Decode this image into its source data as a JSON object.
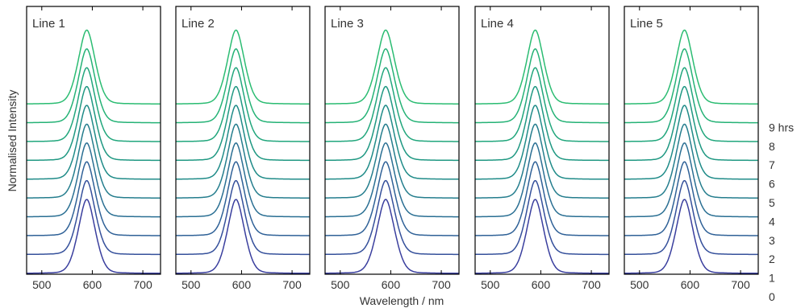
{
  "chart_data": [
    {
      "type": "line",
      "title": "Line 1",
      "x_range": [
        470,
        735
      ],
      "xticks": [
        500,
        600,
        700
      ],
      "peak_center_nm": 589,
      "peak_fwhm_nm": 42,
      "offset_step": 1,
      "series": [
        {
          "name": "0",
          "color": "#3a3f9e"
        },
        {
          "name": "1",
          "color": "#35509b"
        },
        {
          "name": "2",
          "color": "#2f6197"
        },
        {
          "name": "3",
          "color": "#2a6f93"
        },
        {
          "name": "4",
          "color": "#247d8d"
        },
        {
          "name": "5",
          "color": "#1f8b88"
        },
        {
          "name": "6",
          "color": "#1f9882"
        },
        {
          "name": "7",
          "color": "#21a67c"
        },
        {
          "name": "8",
          "color": "#25b276"
        },
        {
          "name": "9 hrs",
          "color": "#2bbc72"
        }
      ]
    },
    {
      "type": "line",
      "title": "Line 2",
      "x_range": [
        470,
        735
      ],
      "xticks": [
        500,
        600,
        700
      ],
      "peak_center_nm": 589,
      "peak_fwhm_nm": 42,
      "offset_step": 1,
      "series": [
        {
          "name": "0",
          "color": "#3a3f9e"
        },
        {
          "name": "1",
          "color": "#35509b"
        },
        {
          "name": "2",
          "color": "#2f6197"
        },
        {
          "name": "3",
          "color": "#2a6f93"
        },
        {
          "name": "4",
          "color": "#247d8d"
        },
        {
          "name": "5",
          "color": "#1f8b88"
        },
        {
          "name": "6",
          "color": "#1f9882"
        },
        {
          "name": "7",
          "color": "#21a67c"
        },
        {
          "name": "8",
          "color": "#25b276"
        },
        {
          "name": "9 hrs",
          "color": "#2bbc72"
        }
      ]
    },
    {
      "type": "line",
      "title": "Line 3",
      "x_range": [
        470,
        735
      ],
      "xticks": [
        500,
        600,
        700
      ],
      "peak_center_nm": 590,
      "peak_fwhm_nm": 44,
      "offset_step": 1,
      "series": [
        {
          "name": "0",
          "color": "#3a3f9e"
        },
        {
          "name": "1",
          "color": "#35509b"
        },
        {
          "name": "2",
          "color": "#2f6197"
        },
        {
          "name": "3",
          "color": "#2a6f93"
        },
        {
          "name": "4",
          "color": "#247d8d"
        },
        {
          "name": "5",
          "color": "#1f8b88"
        },
        {
          "name": "6",
          "color": "#1f9882"
        },
        {
          "name": "7",
          "color": "#21a67c"
        },
        {
          "name": "8",
          "color": "#25b276"
        },
        {
          "name": "9 hrs",
          "color": "#2bbc72"
        }
      ]
    },
    {
      "type": "line",
      "title": "Line 4",
      "x_range": [
        470,
        735
      ],
      "xticks": [
        500,
        600,
        700
      ],
      "peak_center_nm": 589,
      "peak_fwhm_nm": 42,
      "offset_step": 1,
      "series": [
        {
          "name": "0",
          "color": "#3a3f9e"
        },
        {
          "name": "1",
          "color": "#35509b"
        },
        {
          "name": "2",
          "color": "#2f6197"
        },
        {
          "name": "3",
          "color": "#2a6f93"
        },
        {
          "name": "4",
          "color": "#247d8d"
        },
        {
          "name": "5",
          "color": "#1f8b88"
        },
        {
          "name": "6",
          "color": "#1f9882"
        },
        {
          "name": "7",
          "color": "#21a67c"
        },
        {
          "name": "8",
          "color": "#25b276"
        },
        {
          "name": "9 hrs",
          "color": "#2bbc72"
        }
      ]
    },
    {
      "type": "line",
      "title": "Line 5",
      "x_range": [
        470,
        735
      ],
      "xticks": [
        500,
        600,
        700
      ],
      "peak_center_nm": 589,
      "peak_fwhm_nm": 42,
      "offset_step": 1,
      "series": [
        {
          "name": "0",
          "color": "#3a3f9e"
        },
        {
          "name": "1",
          "color": "#35509b"
        },
        {
          "name": "2",
          "color": "#2f6197"
        },
        {
          "name": "3",
          "color": "#2a6f93"
        },
        {
          "name": "4",
          "color": "#247d8d"
        },
        {
          "name": "5",
          "color": "#1f8b88"
        },
        {
          "name": "6",
          "color": "#1f9882"
        },
        {
          "name": "7",
          "color": "#21a67c"
        },
        {
          "name": "8",
          "color": "#25b276"
        },
        {
          "name": "9 hrs",
          "color": "#2bbc72"
        }
      ]
    }
  ],
  "axes": {
    "xlabel": "Wavelength / nm",
    "ylabel": "Normalised Intensity"
  },
  "time_labels": [
    "0",
    "1",
    "2",
    "3",
    "4",
    "5",
    "6",
    "7",
    "8",
    "9 hrs"
  ]
}
